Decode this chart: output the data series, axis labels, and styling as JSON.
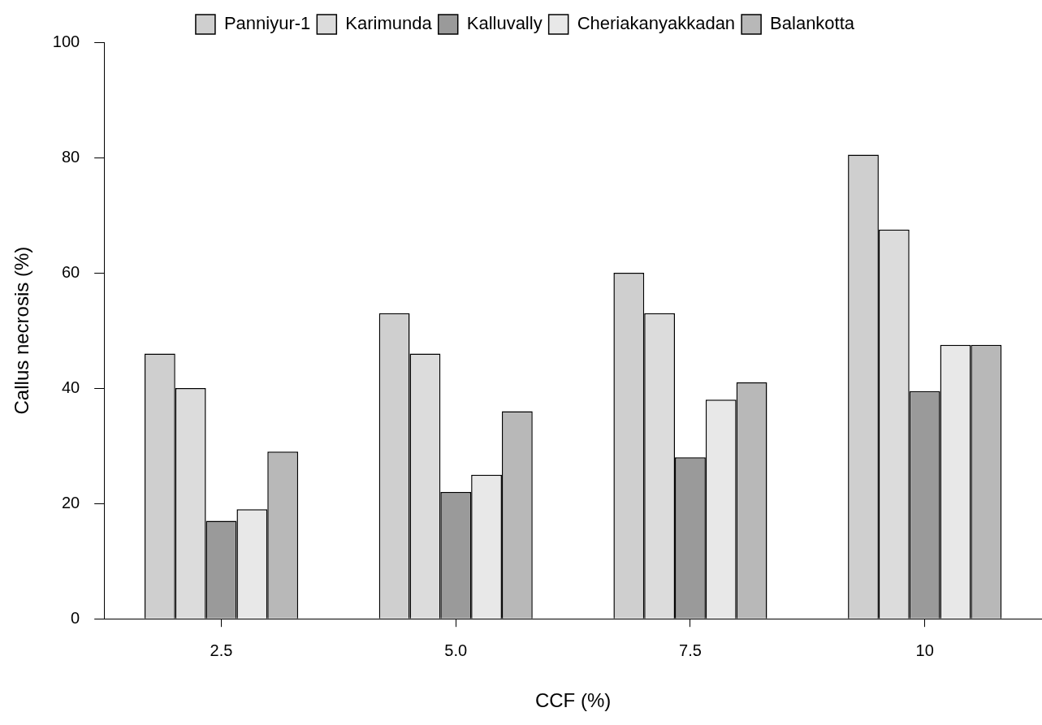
{
  "chart_data": {
    "type": "bar",
    "xlabel": "CCF (%)",
    "ylabel": "Callus necrosis (%)",
    "categories": [
      "2.5",
      "5.0",
      "7.5",
      "10"
    ],
    "series": [
      {
        "name": "Panniyur-1",
        "color": "#cfcfcf",
        "values": [
          46,
          53,
          60,
          80.5
        ]
      },
      {
        "name": "Karimunda",
        "color": "#dcdcdc",
        "values": [
          40,
          46,
          53,
          67.5
        ]
      },
      {
        "name": "Kalluvally",
        "color": "#9a9a9a",
        "values": [
          17,
          22,
          28,
          39.5
        ]
      },
      {
        "name": "Cheriakanyakkadan",
        "color": "#e8e8e8",
        "values": [
          19,
          25,
          38,
          47.5
        ]
      },
      {
        "name": "Balankotta",
        "color": "#b8b8b8",
        "values": [
          29,
          36,
          41,
          47.5
        ]
      }
    ],
    "ylim": [
      0,
      100
    ],
    "yticks": [
      0,
      20,
      40,
      60,
      80,
      100
    ],
    "grid": false,
    "legend": "top"
  }
}
